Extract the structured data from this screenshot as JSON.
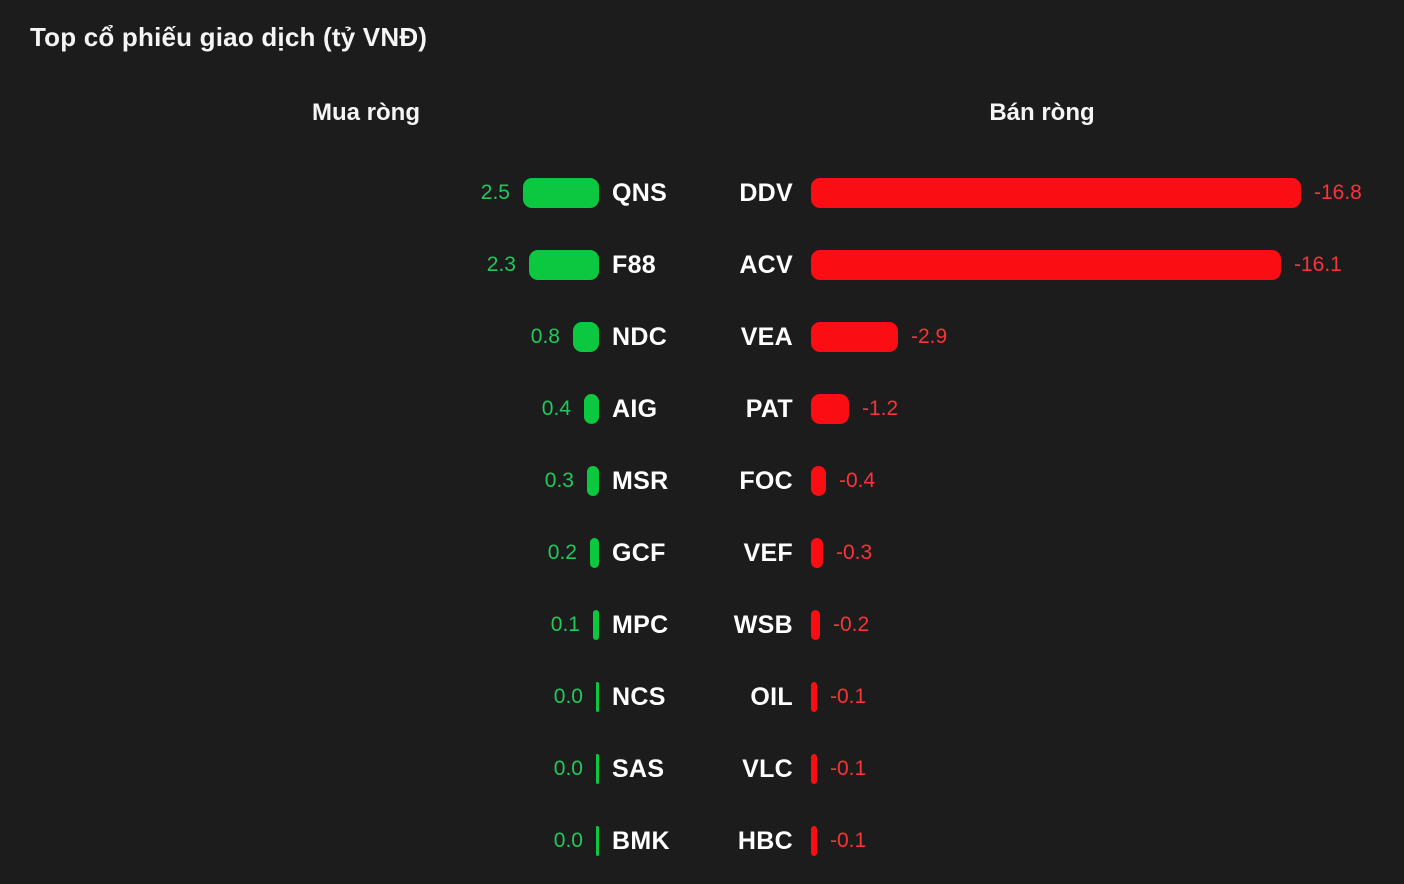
{
  "title": "Top cổ phiếu giao dịch (tỷ VNĐ)",
  "columns": {
    "buy_header": "Mua ròng",
    "sell_header": "Bán ròng"
  },
  "colors": {
    "background": "#1d1c1c",
    "title_text": "#f5f5f5",
    "ticker_text": "#ffffff",
    "buy_bar": "#0cc840",
    "buy_text": "#1fc95c",
    "sell_bar": "#fa0d13",
    "sell_text": "#f8333a"
  },
  "chart_data": {
    "type": "bar",
    "orientation": "horizontal",
    "unit": "tỷ VNĐ",
    "title": "Top cổ phiếu giao dịch (tỷ VNĐ)",
    "legend_position": "column-headers",
    "grid": false,
    "series": [
      {
        "name": "Mua ròng",
        "color": "#0cc840",
        "items": [
          {
            "ticker": "QNS",
            "value": 2.5,
            "label": "2.5"
          },
          {
            "ticker": "F88",
            "value": 2.3,
            "label": "2.3"
          },
          {
            "ticker": "NDC",
            "value": 0.8,
            "label": "0.8"
          },
          {
            "ticker": "AIG",
            "value": 0.4,
            "label": "0.4"
          },
          {
            "ticker": "MSR",
            "value": 0.3,
            "label": "0.3"
          },
          {
            "ticker": "GCF",
            "value": 0.2,
            "label": "0.2"
          },
          {
            "ticker": "MPC",
            "value": 0.1,
            "label": "0.1"
          },
          {
            "ticker": "NCS",
            "value": 0.0,
            "label": "0.0"
          },
          {
            "ticker": "SAS",
            "value": 0.0,
            "label": "0.0"
          },
          {
            "ticker": "BMK",
            "value": 0.0,
            "label": "0.0"
          }
        ]
      },
      {
        "name": "Bán ròng",
        "color": "#fa0d13",
        "items": [
          {
            "ticker": "DDV",
            "value": -16.8,
            "label": "-16.8"
          },
          {
            "ticker": "ACV",
            "value": -16.1,
            "label": "-16.1"
          },
          {
            "ticker": "VEA",
            "value": -2.9,
            "label": "-2.9"
          },
          {
            "ticker": "PAT",
            "value": -1.2,
            "label": "-1.2"
          },
          {
            "ticker": "FOC",
            "value": -0.4,
            "label": "-0.4"
          },
          {
            "ticker": "VEF",
            "value": -0.3,
            "label": "-0.3"
          },
          {
            "ticker": "WSB",
            "value": -0.2,
            "label": "-0.2"
          },
          {
            "ticker": "OIL",
            "value": -0.1,
            "label": "-0.1"
          },
          {
            "ticker": "VLC",
            "value": -0.1,
            "label": "-0.1"
          },
          {
            "ticker": "HBC",
            "value": -0.1,
            "label": "-0.1"
          }
        ]
      }
    ]
  }
}
